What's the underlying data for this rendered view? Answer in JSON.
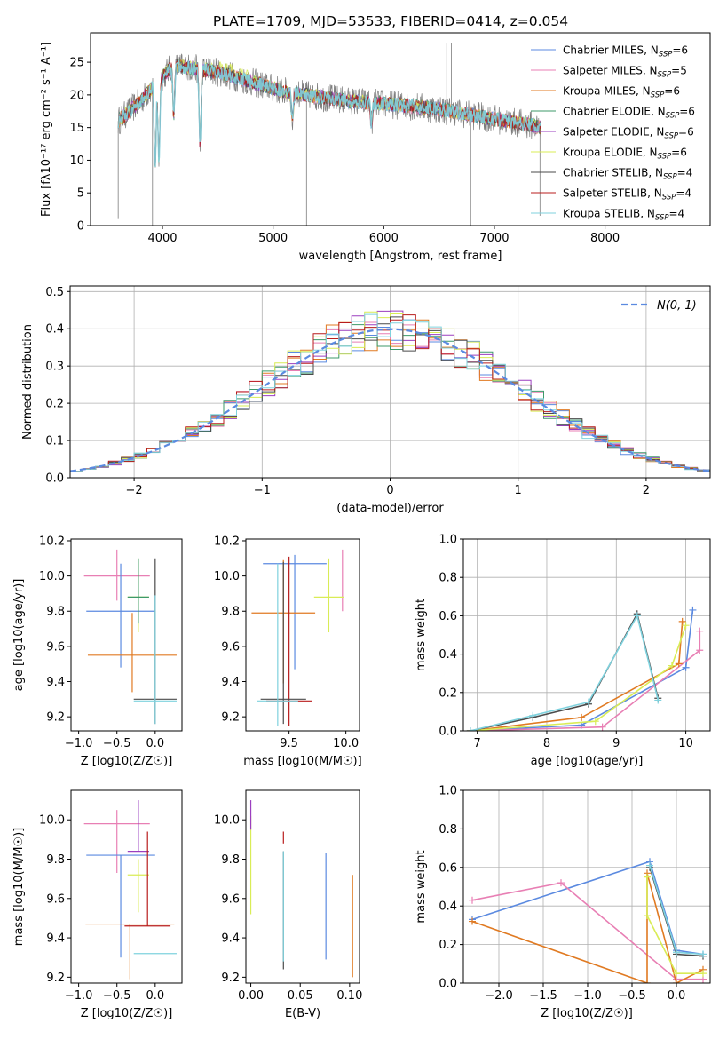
{
  "title": "PLATE=1709, MJD=53533, FIBERID=0414, z=0.054",
  "colors": {
    "Chabrier MILES": "#5b8ae0",
    "Salpeter MILES": "#e87fb4",
    "Kroupa MILES": "#e07a22",
    "Chabrier ELODIE": "#3d9a6a",
    "Salpeter ELODIE": "#9b3fbf",
    "Kroupa ELODIE": "#d9ec56",
    "Chabrier STELIB": "#4a4a4a",
    "Salpeter STELIB": "#b81c1c",
    "Kroupa STELIB": "#7fd2de"
  },
  "chart_data": [
    {
      "type": "line",
      "title": "PLATE=1709, MJD=53533, FIBERID=0414, z=0.054",
      "xlabel": "wavelength [Angstrom, rest frame]",
      "ylabel": "Flux [fλ10⁻¹⁷ erg cm⁻² s⁻¹ A⁻¹]",
      "xlim": [
        3350,
        8950
      ],
      "ylim": [
        0,
        29.5
      ],
      "xticks": [
        4000,
        5000,
        6000,
        7000,
        8000
      ],
      "yticks": [
        0,
        5,
        10,
        15,
        20,
        25
      ],
      "legend_position": "top-right",
      "legend": [
        {
          "label": "Chabrier MILES, N",
          "sub": "SSP",
          "n": "=6"
        },
        {
          "label": "Salpeter MILES, N",
          "sub": "SSP",
          "n": "=5"
        },
        {
          "label": "Kroupa MILES, N",
          "sub": "SSP",
          "n": "=6"
        },
        {
          "label": "Chabrier ELODIE, N",
          "sub": "SSP",
          "n": "=6"
        },
        {
          "label": "Salpeter ELODIE, N",
          "sub": "SSP",
          "n": "=6"
        },
        {
          "label": "Kroupa ELODIE, N",
          "sub": "SSP",
          "n": "=6"
        },
        {
          "label": "Chabrier STELIB, N",
          "sub": "SSP",
          "n": "=4"
        },
        {
          "label": "Salpeter STELIB, N",
          "sub": "SSP",
          "n": "=4"
        },
        {
          "label": "Kroupa STELIB, N",
          "sub": "SSP",
          "n": "=4"
        }
      ],
      "continuum": {
        "x": [
          3600,
          3800,
          3950,
          4100,
          4300,
          4500,
          4700,
          4900,
          5100,
          5300,
          5500,
          5700,
          5900,
          6100,
          6300,
          6500,
          6700,
          6900,
          7100,
          7300,
          7420
        ],
        "y": [
          16,
          19,
          22,
          24.5,
          24,
          23.5,
          22.5,
          21.5,
          20.5,
          20,
          19.5,
          19,
          18.8,
          18.5,
          18.2,
          17.8,
          17.2,
          16.6,
          16,
          15.5,
          15
        ]
      },
      "absorption_lines": [
        {
          "x": 3934,
          "y": 9
        },
        {
          "x": 3968,
          "y": 10
        },
        {
          "x": 4102,
          "y": 17
        },
        {
          "x": 4340,
          "y": 12.5
        },
        {
          "x": 5175,
          "y": 16
        },
        {
          "x": 5890,
          "y": 15.5
        }
      ],
      "data_spikes": [
        {
          "x": 3600,
          "y": 1
        },
        {
          "x": 3910,
          "y": 0
        },
        {
          "x": 5302,
          "y": 0
        },
        {
          "x": 6565,
          "y": 28
        },
        {
          "x": 6612,
          "y": 28
        },
        {
          "x": 6786,
          "y": 0
        },
        {
          "x": 7412,
          "y": 1.5
        }
      ]
    },
    {
      "type": "bar",
      "xlabel": "(data-model)/error",
      "ylabel": "Normed distribution",
      "xlim": [
        -2.5,
        2.5
      ],
      "ylim": [
        0,
        0.515
      ],
      "xticks": [
        -2,
        -1,
        0,
        1,
        2
      ],
      "yticks": [
        0.0,
        0.1,
        0.2,
        0.3,
        0.4,
        0.5
      ],
      "legend": "N(0, 1)",
      "legend_position": "top-right",
      "bins": {
        "start": -2.5,
        "width": 0.1
      },
      "normal_curve": {
        "mean": 0,
        "sigma": 1
      }
    },
    {
      "type": "scatter",
      "xlabel": "Z [log10(Z/Z☉)]",
      "ylabel": "age  [log10(age/yr)]",
      "xlim": [
        -1.1,
        0.35
      ],
      "ylim": [
        9.12,
        10.21
      ],
      "xticks": [
        -1.0,
        -0.5,
        0.0
      ],
      "yticks": [
        9.2,
        9.4,
        9.6,
        9.8,
        10.0,
        10.2
      ],
      "points": [
        {
          "series": "Salpeter MILES",
          "x": -0.5,
          "xerr": 0.43,
          "y": 10.0,
          "yerr": [
            0.14,
            0.15
          ]
        },
        {
          "series": "Chabrier MILES",
          "x": -0.45,
          "xerr": 0.45,
          "y": 9.8,
          "yerr": [
            0.32,
            0.27
          ]
        },
        {
          "series": "Kroupa MILES",
          "x": -0.3,
          "xerr": 0.58,
          "y": 9.55,
          "yerr": [
            0.21,
            0.24
          ]
        },
        {
          "series": "Kroupa ELODIE",
          "x": -0.22,
          "xerr": 0.14,
          "y": 9.88,
          "yerr": [
            0.2,
            0.22
          ]
        },
        {
          "series": "Chabrier ELODIE",
          "x": -0.22,
          "xerr": 0.14,
          "y": 9.88,
          "yerr": [
            0.15,
            0.22
          ]
        },
        {
          "series": "Chabrier STELIB",
          "x": 0.0,
          "xerr": 0.28,
          "y": 9.3,
          "yerr": [
            0.14,
            0.8
          ]
        },
        {
          "series": "Kroupa STELIB",
          "x": 0.0,
          "xerr": 0.28,
          "y": 9.29,
          "yerr": [
            0.13,
            0.6
          ]
        }
      ]
    },
    {
      "type": "scatter",
      "xlabel": "mass [log10(M/M☉)]",
      "xlim": [
        9.12,
        10.12
      ],
      "ylim": [
        9.12,
        10.21
      ],
      "xticks": [
        9.5,
        10.0
      ],
      "yticks": [
        9.2,
        9.4,
        9.6,
        9.8,
        10.0,
        10.2
      ],
      "points": [
        {
          "series": "Chabrier MILES",
          "x": 9.55,
          "xerr": 0.28,
          "y": 10.07,
          "yerr": [
            0.6,
            0.05
          ]
        },
        {
          "series": "Kroupa MILES",
          "x": 9.45,
          "xerr": 0.28,
          "y": 9.79,
          "yerr": [
            0.4,
            0.3
          ]
        },
        {
          "series": "Salpeter MILES",
          "x": 9.97,
          "xerr": 0.0,
          "y": 10.0,
          "yerr": [
            0.2,
            0.15
          ]
        },
        {
          "series": "Kroupa ELODIE",
          "x": 9.85,
          "xerr": 0.13,
          "y": 9.88,
          "yerr": [
            0.2,
            0.22
          ]
        },
        {
          "series": "Salpeter STELIB",
          "x": 9.5,
          "xerr": 0.2,
          "y": 9.29,
          "yerr": [
            0.14,
            0.82
          ]
        },
        {
          "series": "Chabrier STELIB",
          "x": 9.45,
          "xerr": 0.2,
          "y": 9.3,
          "yerr": [
            0.14,
            0.78
          ]
        },
        {
          "series": "Kroupa STELIB",
          "x": 9.4,
          "xerr": 0.18,
          "y": 9.29,
          "yerr": [
            0.14,
            0.78
          ]
        }
      ]
    },
    {
      "type": "line",
      "xlabel": "age  [log10(age/yr)]",
      "ylabel": "mass weight",
      "xlim": [
        6.8,
        10.35
      ],
      "ylim": [
        0,
        1.0
      ],
      "xticks": [
        7,
        8,
        9,
        10
      ],
      "yticks": [
        0.0,
        0.2,
        0.4,
        0.6,
        0.8,
        1.0
      ],
      "series": [
        {
          "name": "Chabrier MILES",
          "x": [
            6.9,
            8.5,
            10.0,
            10.1
          ],
          "y": [
            0.0,
            0.03,
            0.33,
            0.63
          ]
        },
        {
          "name": "Salpeter MILES",
          "x": [
            6.9,
            8.8,
            10.2,
            10.2
          ],
          "y": [
            0.0,
            0.02,
            0.42,
            0.52
          ]
        },
        {
          "name": "Kroupa MILES",
          "x": [
            6.9,
            8.5,
            9.9,
            9.95
          ],
          "y": [
            0.0,
            0.07,
            0.35,
            0.57
          ]
        },
        {
          "name": "Kroupa ELODIE",
          "x": [
            6.9,
            8.7,
            9.8,
            10.0
          ],
          "y": [
            0.0,
            0.05,
            0.34,
            0.55
          ]
        },
        {
          "name": "Chabrier STELIB",
          "x": [
            6.9,
            7.8,
            8.6,
            9.3,
            9.6
          ],
          "y": [
            0.0,
            0.07,
            0.14,
            0.61,
            0.17
          ]
        },
        {
          "name": "Kroupa STELIB",
          "x": [
            6.9,
            7.8,
            8.6,
            9.3,
            9.6
          ],
          "y": [
            0.0,
            0.08,
            0.15,
            0.6,
            0.16
          ]
        }
      ]
    },
    {
      "type": "scatter",
      "xlabel": "Z [log10(Z/Z☉)]",
      "ylabel": "mass [log10(M/M☉)]",
      "xlim": [
        -1.1,
        0.35
      ],
      "ylim": [
        9.17,
        10.15
      ],
      "xticks": [
        -1.0,
        -0.5,
        0.0
      ],
      "yticks": [
        9.2,
        9.4,
        9.6,
        9.8,
        10.0
      ],
      "points": [
        {
          "series": "Salpeter MILES",
          "x": -0.5,
          "xerr": 0.43,
          "y": 9.98,
          "yerr": [
            0.25,
            0.07
          ]
        },
        {
          "series": "Chabrier MILES",
          "x": -0.45,
          "xerr": 0.45,
          "y": 9.82,
          "yerr": [
            0.52,
            0.0
          ]
        },
        {
          "series": "Kroupa MILES",
          "x": -0.33,
          "xerr": 0.58,
          "y": 9.47,
          "yerr": [
            0.28,
            0.0
          ]
        },
        {
          "series": "Salpeter ELODIE",
          "x": -0.22,
          "xerr": 0.14,
          "y": 9.84,
          "yerr": [
            0.0,
            0.26
          ]
        },
        {
          "series": "Kroupa ELODIE",
          "x": -0.22,
          "xerr": 0.14,
          "y": 9.72,
          "yerr": [
            0.19,
            0.08
          ]
        },
        {
          "series": "Salpeter STELIB",
          "x": -0.1,
          "xerr": 0.3,
          "y": 9.46,
          "yerr": [
            0.0,
            0.48
          ]
        },
        {
          "series": "Kroupa STELIB",
          "x": 0.0,
          "xerr": 0.28,
          "y": 9.32,
          "yerr": [
            0.0,
            0.0
          ]
        }
      ]
    },
    {
      "type": "scatter",
      "xlabel": "E(B-V)",
      "xlim": [
        -0.005,
        0.11
      ],
      "ylim": [
        9.17,
        10.15
      ],
      "xticks": [
        0.0,
        0.05,
        0.1
      ],
      "yticks": [
        9.2,
        9.4,
        9.6,
        9.8,
        10.0
      ],
      "points": [
        {
          "series": "Kroupa ELODIE",
          "x": 0.0,
          "y": 9.72,
          "yerr": [
            0.2,
            0.3
          ]
        },
        {
          "series": "Salpeter ELODIE",
          "x": 0.0,
          "y": 10.05,
          "yerr": [
            0.1,
            0.05
          ]
        },
        {
          "series": "Salpeter STELIB",
          "x": 0.033,
          "y": 9.88,
          "yerr": [
            0.0,
            0.06
          ]
        },
        {
          "series": "Chabrier STELIB",
          "x": 0.033,
          "y": 9.54,
          "yerr": [
            0.3,
            0.3
          ]
        },
        {
          "series": "Kroupa STELIB",
          "x": 0.033,
          "y": 9.56,
          "yerr": [
            0.28,
            0.28
          ]
        },
        {
          "series": "Chabrier MILES",
          "x": 0.076,
          "y": 9.56,
          "yerr": [
            0.27,
            0.27
          ]
        },
        {
          "series": "Kroupa MILES",
          "x": 0.103,
          "y": 9.46,
          "yerr": [
            0.26,
            0.26
          ]
        }
      ]
    },
    {
      "type": "line",
      "xlabel": "Z [log10(Z/Z☉)]",
      "ylabel": "mass weight",
      "xlim": [
        -2.4,
        0.38
      ],
      "ylim": [
        0,
        1.0
      ],
      "xticks": [
        -2.0,
        -1.5,
        -1.0,
        -0.5,
        0.0
      ],
      "yticks": [
        0.0,
        0.2,
        0.4,
        0.6,
        0.8,
        1.0
      ],
      "series": [
        {
          "name": "Chabrier MILES",
          "x": [
            -2.3,
            -0.3,
            0.0,
            0.3
          ],
          "y": [
            0.33,
            0.63,
            0.17,
            0.15
          ]
        },
        {
          "name": "Salpeter MILES",
          "x": [
            -2.3,
            -1.3,
            0.0,
            0.3
          ],
          "y": [
            0.43,
            0.52,
            0.02,
            0.02
          ]
        },
        {
          "name": "Kroupa MILES",
          "x": [
            -2.3,
            -0.33,
            -0.33,
            0.0,
            0.3
          ],
          "y": [
            0.32,
            0.0,
            0.57,
            0.0,
            0.07
          ]
        },
        {
          "name": "Kroupa ELODIE",
          "x": [
            -0.33,
            -0.33,
            0.0,
            0.3
          ],
          "y": [
            0.55,
            0.35,
            0.05,
            0.05
          ]
        },
        {
          "name": "Chabrier STELIB",
          "x": [
            -0.3,
            0.0,
            0.3
          ],
          "y": [
            0.6,
            0.15,
            0.14
          ]
        },
        {
          "name": "Kroupa STELIB",
          "x": [
            -0.3,
            0.0,
            0.3
          ],
          "y": [
            0.61,
            0.16,
            0.15
          ]
        }
      ]
    }
  ]
}
